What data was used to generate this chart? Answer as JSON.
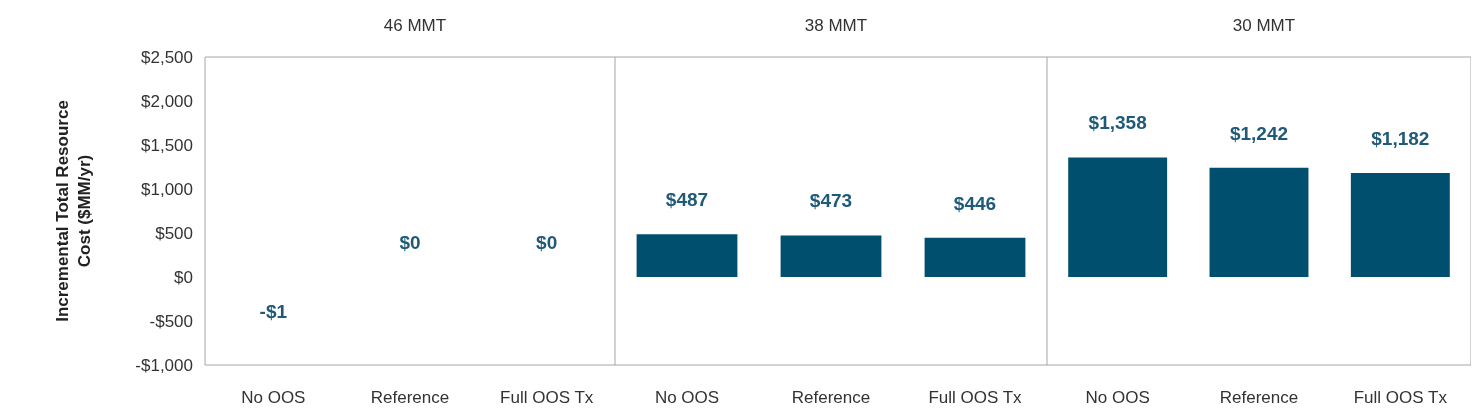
{
  "chart_data": [
    {
      "type": "bar",
      "title": "46 MMT",
      "ylabel": "Incremental Total Resource Cost ($MM/yr)",
      "categories": [
        "No OOS",
        "Reference",
        "Full OOS Tx"
      ],
      "values": [
        -1,
        0,
        0
      ],
      "value_labels": [
        "-$1",
        "$0",
        "$0"
      ],
      "color": "#004f6e",
      "ylim": [
        -1000,
        2500
      ],
      "yticks": [
        {
          "value": -1000,
          "label": "-$1,000"
        },
        {
          "value": -500,
          "label": "-$500"
        },
        {
          "value": 0,
          "label": "$0"
        },
        {
          "value": 500,
          "label": "$500"
        },
        {
          "value": 1000,
          "label": "$1,000"
        },
        {
          "value": 1500,
          "label": "$1,500"
        },
        {
          "value": 2000,
          "label": "$2,000"
        },
        {
          "value": 2500,
          "label": "$2,500"
        }
      ]
    },
    {
      "type": "bar",
      "title": "38 MMT",
      "categories": [
        "No OOS",
        "Reference",
        "Full OOS Tx"
      ],
      "values": [
        487,
        473,
        446
      ],
      "value_labels": [
        "$487",
        "$473",
        "$446"
      ],
      "color": "#004f6e",
      "ylim": [
        -1000,
        2500
      ],
      "tick_labels": "x"
    },
    {
      "type": "bar",
      "title": "30 MMT",
      "categories": [
        "No OOS",
        "Reference",
        "Full OOS Tx"
      ],
      "values": [
        1358,
        1242,
        1182
      ],
      "value_labels": [
        "$1,358",
        "$1,242",
        "$1,182"
      ],
      "color": "#004f6e",
      "ylim": [
        -1000,
        2500
      ],
      "tick_labels": "x"
    }
  ]
}
